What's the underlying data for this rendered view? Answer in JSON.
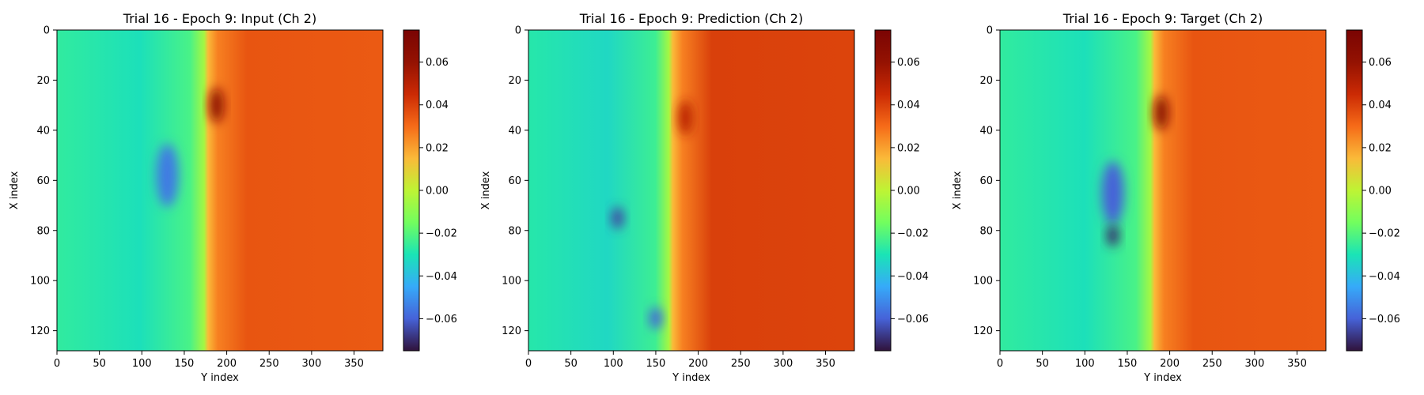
{
  "chart_data": [
    {
      "type": "heatmap",
      "title": "Trial 16 - Epoch 9: Input (Ch 2)",
      "xlabel": "Y index",
      "ylabel": "X index",
      "xlim": [
        0,
        384
      ],
      "ylim": [
        128,
        0
      ],
      "xticks": [
        0,
        50,
        100,
        150,
        200,
        250,
        300,
        350
      ],
      "yticks": [
        0,
        20,
        40,
        60,
        80,
        100,
        120
      ],
      "colormap": "turbo",
      "colorbar": {
        "min": -0.075,
        "max": 0.075,
        "ticks": [
          -0.06,
          -0.04,
          -0.02,
          0.0,
          0.02,
          0.04,
          0.06
        ],
        "ticklabels": [
          "−0.06",
          "−0.04",
          "−0.02",
          "0.00",
          "0.02",
          "0.04",
          "0.06"
        ]
      },
      "field": {
        "front_y": 178,
        "left_value": -0.028,
        "right_value": 0.035,
        "features": [
          {
            "kind": "blue_vortex",
            "y": 130,
            "x": 58,
            "value": -0.055
          },
          {
            "kind": "red_peak",
            "y": 188,
            "x": 30,
            "value": 0.065
          }
        ]
      }
    },
    {
      "type": "heatmap",
      "title": "Trial 16 - Epoch 9: Prediction (Ch 2)",
      "xlabel": "Y index",
      "ylabel": "X index",
      "xlim": [
        0,
        384
      ],
      "ylim": [
        128,
        0
      ],
      "xticks": [
        0,
        50,
        100,
        150,
        200,
        250,
        300,
        350
      ],
      "yticks": [
        0,
        20,
        40,
        60,
        80,
        100,
        120
      ],
      "colormap": "turbo",
      "colorbar": {
        "min": -0.075,
        "max": 0.075,
        "ticks": [
          -0.06,
          -0.04,
          -0.02,
          0.0,
          0.02,
          0.04,
          0.06
        ],
        "ticklabels": [
          "−0.06",
          "−0.04",
          "−0.02",
          "0.00",
          "0.02",
          "0.04",
          "0.06"
        ]
      },
      "field": {
        "front_y": 170,
        "left_value": -0.03,
        "right_value": 0.04,
        "features": [
          {
            "kind": "dark_blue_spot",
            "y": 105,
            "x": 75,
            "value": -0.065
          },
          {
            "kind": "dark_blue_spot",
            "y": 150,
            "x": 115,
            "value": -0.06
          },
          {
            "kind": "red_peak",
            "y": 185,
            "x": 35,
            "value": 0.05
          }
        ]
      }
    },
    {
      "type": "heatmap",
      "title": "Trial 16 - Epoch 9: Target (Ch 2)",
      "xlabel": "Y index",
      "ylabel": "X index",
      "xlim": [
        0,
        384
      ],
      "ylim": [
        128,
        0
      ],
      "xticks": [
        0,
        50,
        100,
        150,
        200,
        250,
        300,
        350
      ],
      "yticks": [
        0,
        20,
        40,
        60,
        80,
        100,
        120
      ],
      "colormap": "turbo",
      "colorbar": {
        "min": -0.075,
        "max": 0.075,
        "ticks": [
          -0.06,
          -0.04,
          -0.02,
          0.0,
          0.02,
          0.04,
          0.06
        ],
        "ticklabels": [
          "−0.06",
          "−0.04",
          "−0.02",
          "0.00",
          "0.02",
          "0.04",
          "0.06"
        ]
      },
      "field": {
        "front_y": 182,
        "left_value": -0.028,
        "right_value": 0.035,
        "features": [
          {
            "kind": "blue_vortex",
            "y": 133,
            "x": 65,
            "value": -0.06
          },
          {
            "kind": "dark_blue_spot",
            "y": 133,
            "x": 82,
            "value": -0.07
          },
          {
            "kind": "red_peak",
            "y": 190,
            "x": 33,
            "value": 0.068
          }
        ]
      }
    }
  ]
}
